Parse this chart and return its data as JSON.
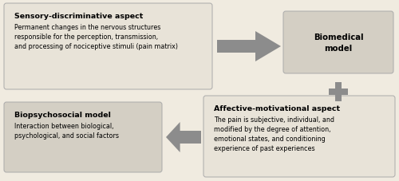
{
  "bg_color": "#f0ebe0",
  "box_light_color": "#e8e3d8",
  "box_mid_color": "#d4cfc4",
  "arrow_color": "#8c8c8c",
  "plus_color": "#8c8c8c",
  "white": "#ffffff",
  "box1_title": "Sensory-discriminative aspect",
  "box1_text": "Permanent changes in the nervous structures\nresponsible for the perception, transmission,\nand processing of nociceptive stimuli (pain matrix)",
  "box2_title": "Biomedical\nmodel",
  "box3_title": "Affective-motivational aspect",
  "box3_text": "The pain is subjective, individual, and\nmodified by the degree of attention,\nemotional states, and conditioning\nexperience of past experiences",
  "box4_title": "Biopsychosocial model",
  "box4_text": "Interaction between biological,\npsychological, and social factors",
  "title_fontsize": 6.8,
  "body_fontsize": 5.8
}
